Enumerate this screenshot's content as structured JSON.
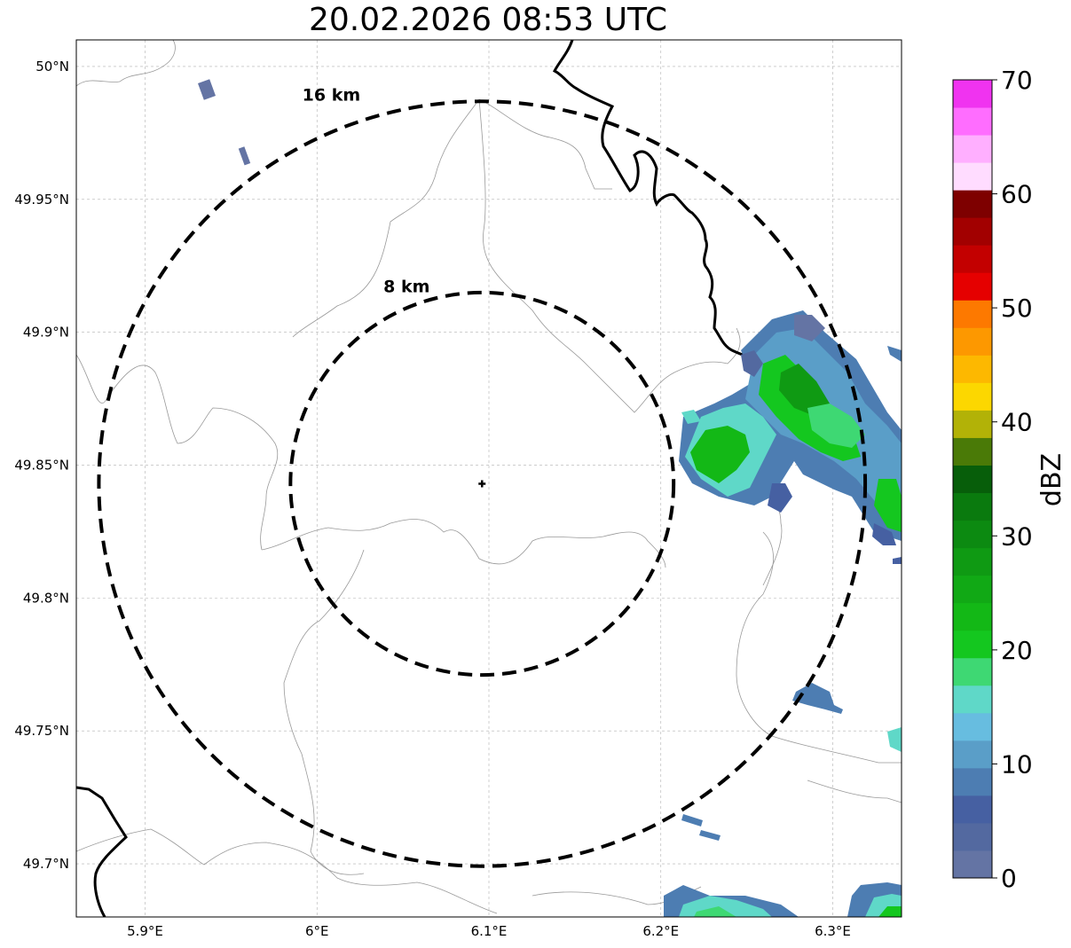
{
  "title": "20.02.2026 08:53 UTC",
  "map": {
    "lon_range": [
      5.86,
      6.34
    ],
    "lat_range": [
      49.68,
      50.01
    ],
    "x_ticks": [
      {
        "value": 5.9,
        "label": "5.9°E"
      },
      {
        "value": 6.0,
        "label": "6°E"
      },
      {
        "value": 6.1,
        "label": "6.1°E"
      },
      {
        "value": 6.2,
        "label": "6.2°E"
      },
      {
        "value": 6.3,
        "label": "6.3°E"
      }
    ],
    "y_ticks": [
      {
        "value": 50.0,
        "label": "50°N"
      },
      {
        "value": 49.95,
        "label": "49.95°N"
      },
      {
        "value": 49.9,
        "label": "49.9°N"
      },
      {
        "value": 49.85,
        "label": "49.85°N"
      },
      {
        "value": 49.8,
        "label": "49.8°N"
      },
      {
        "value": 49.75,
        "label": "49.75°N"
      },
      {
        "value": 49.7,
        "label": "49.7°N"
      }
    ],
    "grid": true,
    "center": {
      "lon": 6.096,
      "lat": 49.843
    },
    "range_rings": [
      {
        "label": "8 km",
        "radius_km": 8
      },
      {
        "label": "16 km",
        "radius_km": 16
      }
    ],
    "border_color": "#000000",
    "admin_line_color": "#999999"
  },
  "colorbar": {
    "label": "dBZ",
    "min": 0,
    "max": 70,
    "tick_labels": [
      "0",
      "10",
      "20",
      "30",
      "40",
      "50",
      "60",
      "70"
    ],
    "colors": [
      "#6474a4",
      "#5369a0",
      "#4660a2",
      "#4d7db2",
      "#5a9ec8",
      "#67bde0",
      "#5fd8c8",
      "#3ed873",
      "#14c71f",
      "#13b816",
      "#11a915",
      "#0f9a13",
      "#0c8a11",
      "#0a7a0e",
      "#075e0a",
      "#4a7a07",
      "#b2b207",
      "#fcd700",
      "#fdb800",
      "#fd9800",
      "#fd7900",
      "#e50000",
      "#c30000",
      "#a20000",
      "#7e0000",
      "#ffdcff",
      "#ffafff",
      "#ff6dff",
      "#f033f0"
    ]
  }
}
